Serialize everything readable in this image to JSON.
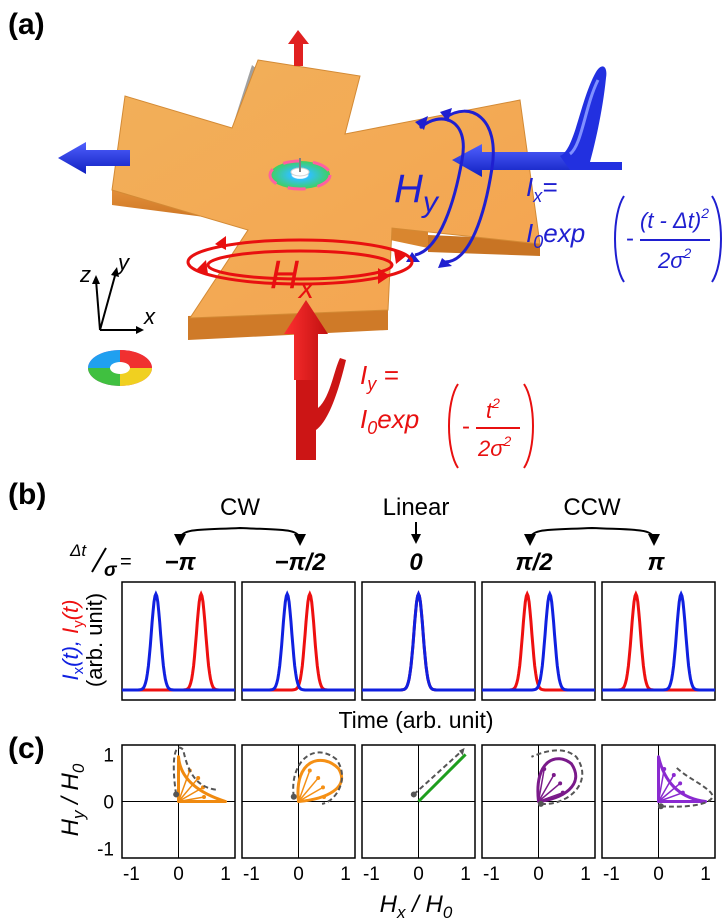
{
  "panel_a": {
    "label": "(a)",
    "field_y_label": "H",
    "field_y_sub": "y",
    "field_x_label": "H",
    "field_x_sub": "x",
    "axis_z": "z",
    "axis_y": "y",
    "axis_x": "x",
    "current_x": {
      "lhs_main": "I",
      "lhs_sub": "x",
      "lhs_eq": "=",
      "prefix_main": "I",
      "prefix_sub": "0",
      "prefix_rest": "exp",
      "numerator": "(t - Δt)",
      "numerator_sup": "2",
      "denominator": "2σ",
      "denominator_sup": "2",
      "minus": "-"
    },
    "current_y": {
      "lhs_main": "I",
      "lhs_sub": "y",
      "lhs_eq": " =",
      "prefix_main": "I",
      "prefix_sub": "0",
      "prefix_rest": "exp",
      "numerator": "t",
      "numerator_sup": "2",
      "denominator": "2σ",
      "denominator_sup": "2",
      "minus": "-"
    },
    "colors": {
      "field_y": "#1f1fd0",
      "field_x": "#e81010",
      "cross": "#f0a040",
      "up_arrow": "#e02020"
    }
  },
  "panel_b": {
    "label": "(b)",
    "cw_label": "CW",
    "linear_label": "Linear",
    "ccw_label": "CCW",
    "ratio_num": "Δt",
    "ratio_den": "σ",
    "ratio_eq": "=",
    "dt_values": [
      "−π",
      "−π/2",
      "0",
      "π/2",
      "π"
    ],
    "ylabel_ix": "I",
    "ylabel_ix_sub": "x",
    "ylabel_ix_t": "(t), ",
    "ylabel_iy": "I",
    "ylabel_iy_sub": "y",
    "ylabel_iy_t": "(t)",
    "ylabel_unit": "(arb. unit)",
    "xlabel": "Time (arb. unit)",
    "colors": {
      "ix": "#1020e0",
      "iy": "#ee1010"
    }
  },
  "panel_c": {
    "label": "(c)",
    "ylabel_num": "H",
    "ylabel_num_sub": "y",
    "ylabel_den": "H",
    "ylabel_den_sub": "0",
    "xlabel_num": "H",
    "xlabel_num_sub": "x",
    "xlabel_den": "H",
    "xlabel_den_sub": "0",
    "yticks": [
      "1",
      "0",
      "-1"
    ],
    "xticks": [
      "-1",
      "0",
      "1"
    ],
    "colors": [
      "#f08a10",
      "#f59015",
      "#1e9e1e",
      "#7a1a8a",
      "#8a2ad0"
    ]
  },
  "chart_data": [
    {
      "type": "line",
      "title": "",
      "xlabel": "Time (arb. unit)",
      "ylabel": "Ix(t), Iy(t) (arb. unit)",
      "panels": [
        {
          "dt_over_sigma": "−π",
          "ix_center": -0.6,
          "iy_center": 0.6
        },
        {
          "dt_over_sigma": "−π/2",
          "ix_center": -0.3,
          "iy_center": 0.3
        },
        {
          "dt_over_sigma": "0",
          "ix_center": 0,
          "iy_center": 0
        },
        {
          "dt_over_sigma": "π/2",
          "ix_center": 0.3,
          "iy_center": -0.3
        },
        {
          "dt_over_sigma": "π",
          "ix_center": 0.6,
          "iy_center": -0.6
        }
      ]
    },
    {
      "type": "line",
      "title": "",
      "xlabel": "Hx/H0",
      "ylabel": "Hy/H0",
      "xlim": [
        -1.2,
        1.2
      ],
      "ylim": [
        -1.2,
        1.2
      ],
      "xticks": [
        -1,
        0,
        1
      ],
      "yticks": [
        -1,
        0,
        1
      ]
    }
  ]
}
